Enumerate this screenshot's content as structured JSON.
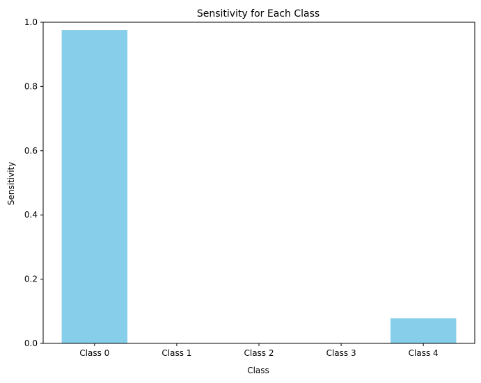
{
  "chart_data": {
    "type": "bar",
    "title": "Sensitivity for Each Class",
    "xlabel": "Class",
    "ylabel": "Sensitivity",
    "categories": [
      "Class 0",
      "Class 1",
      "Class 2",
      "Class 3",
      "Class 4"
    ],
    "values": [
      0.976,
      0.0,
      0.0,
      0.0,
      0.078
    ],
    "ylim": [
      0,
      1.0
    ],
    "yticks": [
      0.0,
      0.2,
      0.4,
      0.6,
      0.8,
      1.0
    ],
    "ytick_labels": [
      "0.0",
      "0.2",
      "0.4",
      "0.6",
      "0.8",
      "1.0"
    ],
    "grid": false,
    "legend": "none",
    "colors": {
      "bar": "#87ceeb",
      "axis": "#000000"
    }
  }
}
